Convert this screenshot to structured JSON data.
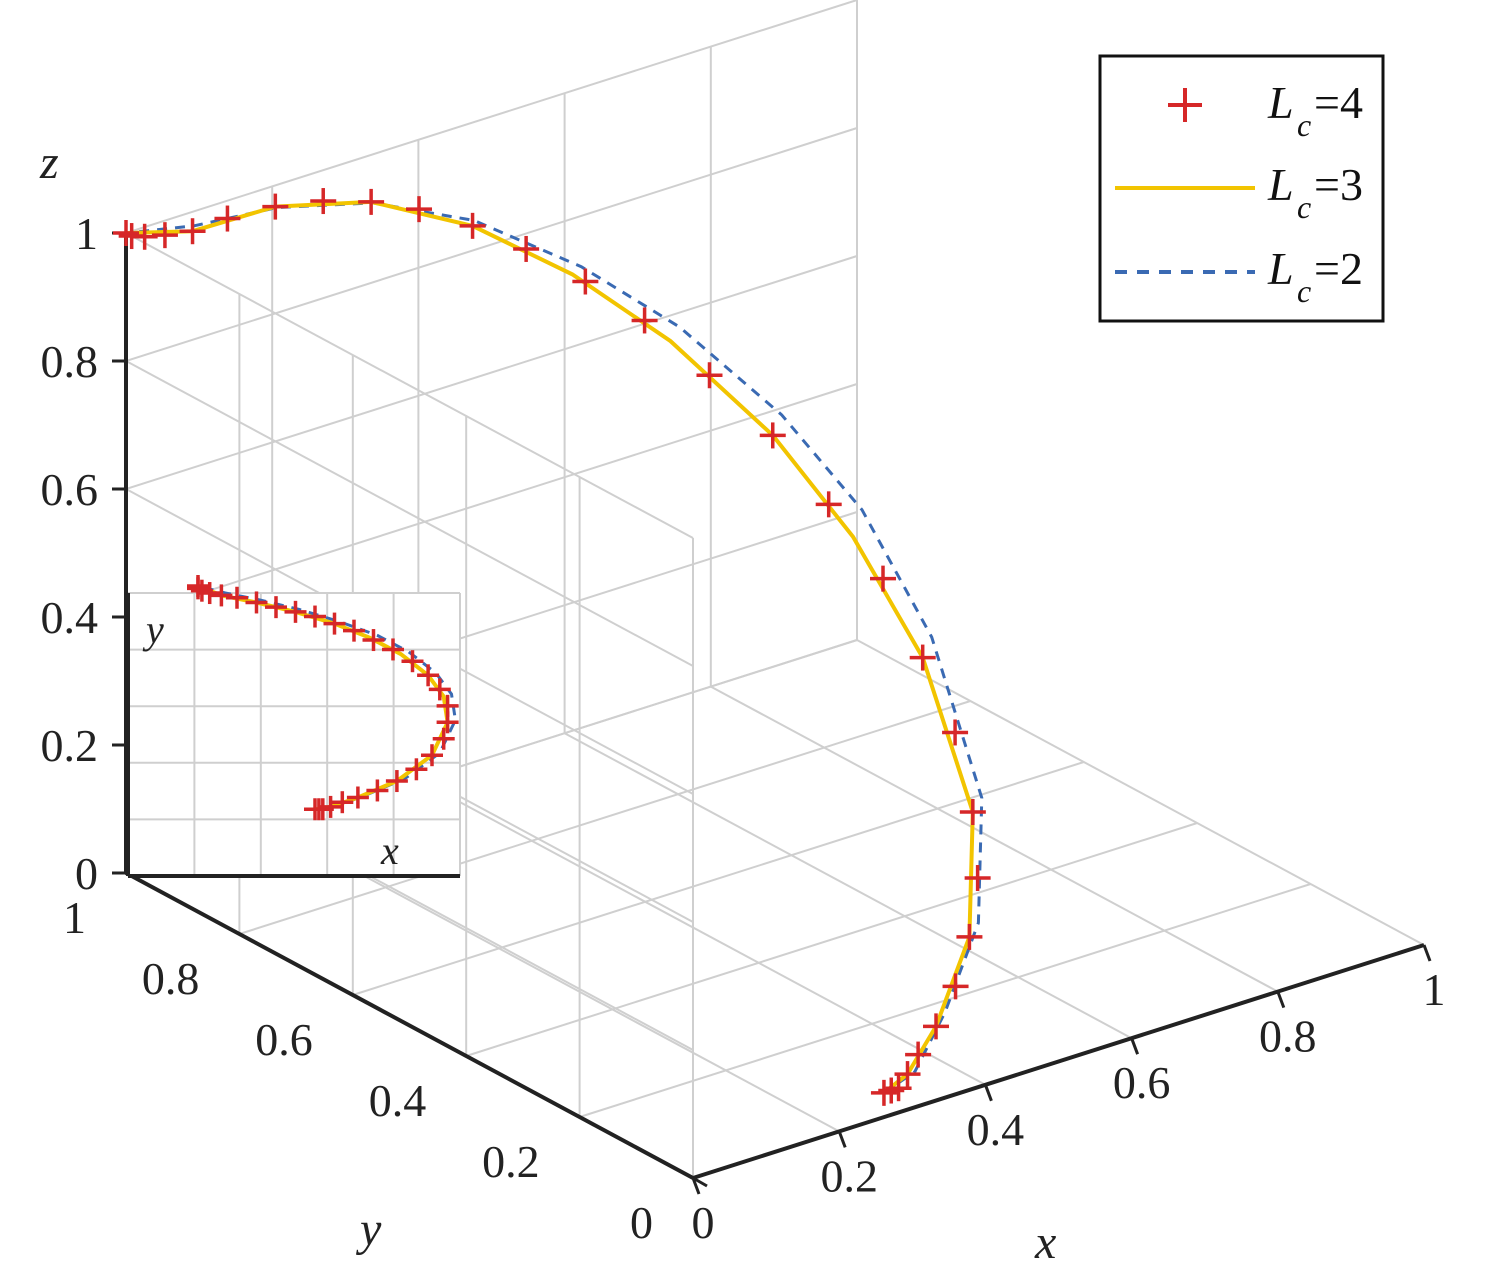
{
  "colors": {
    "marker": "#d62728",
    "solid": "#f2c400",
    "dashed": "#3a6ab3",
    "grid": "#cfcfcf",
    "axis": "#222222"
  },
  "chart_data": {
    "type": "line3d",
    "axes": {
      "x": {
        "label": "x",
        "range": [
          0,
          1
        ],
        "ticks": [
          "0",
          "0.2",
          "0.4",
          "0.6",
          "0.8",
          "1"
        ]
      },
      "y": {
        "label": "y",
        "range": [
          0,
          1
        ],
        "ticks": [
          "0",
          "0.2",
          "0.4",
          "0.6",
          "0.8",
          "1"
        ]
      },
      "z": {
        "label": "z",
        "range": [
          0,
          1
        ],
        "ticks": [
          "0",
          "0.2",
          "0.4",
          "0.6",
          "0.8",
          "1"
        ]
      }
    },
    "grid": true,
    "legend": {
      "placement": "top-right",
      "entries": [
        {
          "series": 0,
          "L": "L",
          "sub": "c",
          "eq": "=4",
          "style": "marker-plus"
        },
        {
          "series": 1,
          "L": "L",
          "sub": "c",
          "eq": "=3",
          "style": "solid"
        },
        {
          "series": 2,
          "L": "L",
          "sub": "c",
          "eq": "=2",
          "style": "dashed"
        }
      ]
    },
    "series": [
      {
        "style": "marker-plus",
        "points": [
          [
            0.3,
            0.05,
            0.0
          ],
          [
            0.31,
            0.05,
            0.0
          ],
          [
            0.32,
            0.05,
            0.0
          ],
          [
            0.34,
            0.06,
            0.01
          ],
          [
            0.37,
            0.08,
            0.02
          ],
          [
            0.41,
            0.1,
            0.04
          ],
          [
            0.46,
            0.13,
            0.07
          ],
          [
            0.51,
            0.17,
            0.11
          ],
          [
            0.56,
            0.22,
            0.16
          ],
          [
            0.6,
            0.28,
            0.22
          ],
          [
            0.63,
            0.35,
            0.3
          ],
          [
            0.64,
            0.42,
            0.38
          ],
          [
            0.64,
            0.49,
            0.47
          ],
          [
            0.62,
            0.56,
            0.56
          ],
          [
            0.59,
            0.62,
            0.65
          ],
          [
            0.55,
            0.68,
            0.73
          ],
          [
            0.5,
            0.73,
            0.81
          ],
          [
            0.45,
            0.77,
            0.87
          ],
          [
            0.4,
            0.81,
            0.92
          ],
          [
            0.35,
            0.84,
            0.96
          ],
          [
            0.3,
            0.87,
            0.99
          ],
          [
            0.25,
            0.89,
            1.01
          ],
          [
            0.2,
            0.91,
            1.02
          ],
          [
            0.15,
            0.93,
            1.02
          ],
          [
            0.1,
            0.95,
            1.01
          ],
          [
            0.06,
            0.96,
            1.0
          ],
          [
            0.03,
            0.97,
            1.0
          ],
          [
            0.01,
            0.98,
            1.0
          ],
          [
            0.0,
            0.99,
            1.0
          ],
          [
            0.0,
            1.0,
            1.0
          ]
        ]
      },
      {
        "style": "solid",
        "points": [
          [
            0.3,
            0.05,
            0.0
          ],
          [
            0.34,
            0.06,
            0.01
          ],
          [
            0.41,
            0.1,
            0.04
          ],
          [
            0.51,
            0.17,
            0.11
          ],
          [
            0.6,
            0.28,
            0.22
          ],
          [
            0.64,
            0.42,
            0.38
          ],
          [
            0.63,
            0.53,
            0.52
          ],
          [
            0.59,
            0.62,
            0.65
          ],
          [
            0.52,
            0.71,
            0.78
          ],
          [
            0.44,
            0.78,
            0.88
          ],
          [
            0.35,
            0.84,
            0.96
          ],
          [
            0.25,
            0.89,
            1.01
          ],
          [
            0.15,
            0.93,
            1.02
          ],
          [
            0.06,
            0.96,
            1.0
          ],
          [
            0.0,
            1.0,
            1.0
          ]
        ]
      },
      {
        "style": "dashed",
        "points": [
          [
            0.3,
            0.05,
            0.0
          ],
          [
            0.35,
            0.06,
            0.01
          ],
          [
            0.43,
            0.11,
            0.05
          ],
          [
            0.53,
            0.18,
            0.12
          ],
          [
            0.62,
            0.29,
            0.23
          ],
          [
            0.66,
            0.43,
            0.4
          ],
          [
            0.65,
            0.54,
            0.55
          ],
          [
            0.61,
            0.63,
            0.67
          ],
          [
            0.54,
            0.72,
            0.79
          ],
          [
            0.46,
            0.79,
            0.88
          ],
          [
            0.36,
            0.85,
            0.96
          ],
          [
            0.26,
            0.9,
            1.0
          ],
          [
            0.16,
            0.94,
            1.01
          ],
          [
            0.07,
            0.97,
            1.0
          ],
          [
            0.0,
            1.0,
            1.0
          ]
        ]
      }
    ],
    "inset": {
      "xlabel": "x",
      "ylabel": "y",
      "grid": true,
      "xlim": [
        0,
        1
      ],
      "ylim": [
        0,
        1
      ]
    }
  }
}
